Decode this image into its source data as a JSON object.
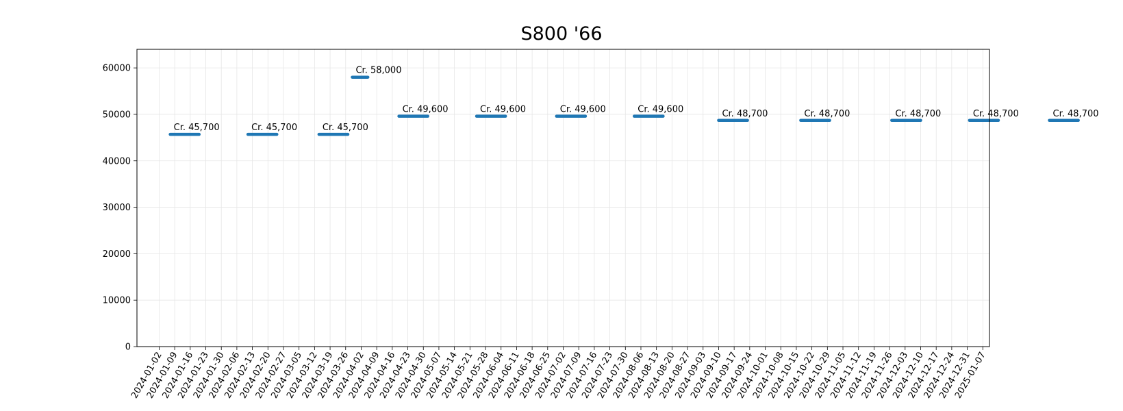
{
  "chart_data": {
    "type": "scatter",
    "title": "S800 '66",
    "xlabel": "",
    "ylabel": "",
    "ylim": [
      0,
      64000
    ],
    "yticks": [
      0,
      10000,
      20000,
      30000,
      40000,
      50000,
      60000
    ],
    "xlim": [
      "2023-12-23",
      "2025-01-10"
    ],
    "xticks": [
      "2024-01-02",
      "2024-01-09",
      "2024-01-16",
      "2024-01-23",
      "2024-01-30",
      "2024-02-06",
      "2024-02-13",
      "2024-02-20",
      "2024-02-27",
      "2024-03-05",
      "2024-03-12",
      "2024-03-19",
      "2024-03-26",
      "2024-04-02",
      "2024-04-09",
      "2024-04-16",
      "2024-04-23",
      "2024-04-30",
      "2024-05-07",
      "2024-05-14",
      "2024-05-21",
      "2024-05-28",
      "2024-06-04",
      "2024-06-11",
      "2024-06-18",
      "2024-06-25",
      "2024-07-02",
      "2024-07-09",
      "2024-07-16",
      "2024-07-23",
      "2024-07-30",
      "2024-08-06",
      "2024-08-13",
      "2024-08-20",
      "2024-08-27",
      "2024-09-03",
      "2024-09-10",
      "2024-09-17",
      "2024-09-24",
      "2024-10-01",
      "2024-10-08",
      "2024-10-15",
      "2024-10-22",
      "2024-10-29",
      "2024-11-05",
      "2024-11-12",
      "2024-11-19",
      "2024-11-26",
      "2024-12-03",
      "2024-12-10",
      "2024-12-17",
      "2024-12-24",
      "2024-12-31",
      "2025-01-07"
    ],
    "grid": true,
    "color": "#1f77b4",
    "groups": [
      {
        "start": "2024-01-07",
        "end": "2024-01-20",
        "value": 45700,
        "label": "Cr. 45,700"
      },
      {
        "start": "2024-02-11",
        "end": "2024-02-24",
        "value": 45700,
        "label": "Cr. 45,700"
      },
      {
        "start": "2024-03-14",
        "end": "2024-03-27",
        "value": 45700,
        "label": "Cr. 45,700"
      },
      {
        "start": "2024-03-29",
        "end": "2024-04-05",
        "value": 58000,
        "label": "Cr. 58,000"
      },
      {
        "start": "2024-04-19",
        "end": "2024-05-02",
        "value": 49600,
        "label": "Cr. 49,600"
      },
      {
        "start": "2024-05-24",
        "end": "2024-06-06",
        "value": 49600,
        "label": "Cr. 49,600"
      },
      {
        "start": "2024-06-29",
        "end": "2024-07-12",
        "value": 49600,
        "label": "Cr. 49,600"
      },
      {
        "start": "2024-08-03",
        "end": "2024-08-16",
        "value": 49600,
        "label": "Cr. 49,600"
      },
      {
        "start": "2024-09-10",
        "end": "2024-09-23",
        "value": 48700,
        "label": "Cr. 48,700"
      },
      {
        "start": "2024-10-17",
        "end": "2024-10-30",
        "value": 48700,
        "label": "Cr. 48,700"
      },
      {
        "start": "2024-11-27",
        "end": "2024-12-10",
        "value": 48700,
        "label": "Cr. 48,700"
      },
      {
        "start": "2025-01-01",
        "end": "2025-01-14",
        "value": 48700,
        "label": "Cr. 48,700"
      },
      {
        "start": "2025-02-06",
        "end": "2025-02-19",
        "value": 48700,
        "label": "Cr. 48,700"
      }
    ]
  }
}
